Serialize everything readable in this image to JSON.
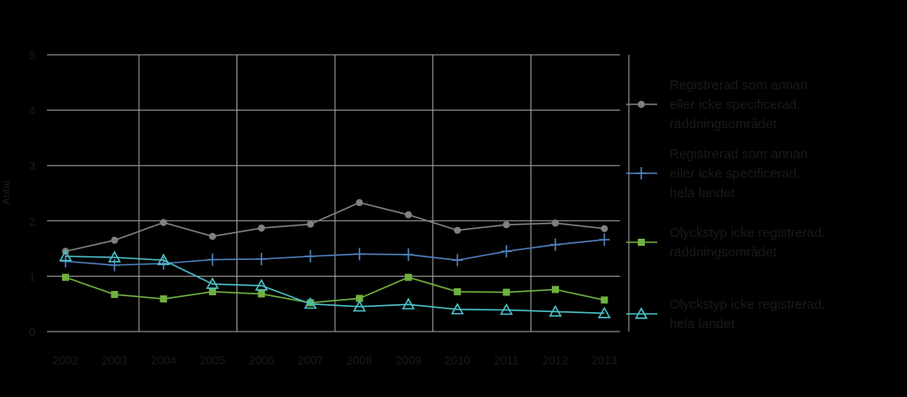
{
  "chart_data": {
    "type": "line",
    "title": "",
    "xlabel": "",
    "ylabel": "Antal",
    "ylim": [
      0,
      5
    ],
    "y_ticks": [
      "0",
      "1",
      "2",
      "3",
      "4",
      "5"
    ],
    "grid": true,
    "legend_position": "right",
    "categories": [
      "2002",
      "2003",
      "2004",
      "2005",
      "2006",
      "2007",
      "2008",
      "2009",
      "2010",
      "2011",
      "2012",
      "2013"
    ],
    "series": [
      {
        "name_lines": [
          "Registrerad som annan",
          "eller icke specificerad,",
          "räddningsområdet"
        ],
        "color": "#808080",
        "marker": "circle",
        "values": [
          1.45,
          1.65,
          1.97,
          1.72,
          1.87,
          1.94,
          2.33,
          2.11,
          1.83,
          1.93,
          1.96,
          1.86
        ]
      },
      {
        "name_lines": [
          "Registrerad som annan",
          "eller icke specificerad,",
          "hela landet"
        ],
        "color": "#4f81bd",
        "marker": "plus",
        "values": [
          1.27,
          1.2,
          1.23,
          1.3,
          1.31,
          1.36,
          1.4,
          1.39,
          1.29,
          1.45,
          1.57,
          1.66
        ]
      },
      {
        "name_lines": [
          "Olyckstyp icke registrerad,",
          "räddningsområdet"
        ],
        "color": "#70b040",
        "marker": "square",
        "values": [
          0.98,
          0.67,
          0.59,
          0.72,
          0.68,
          0.52,
          0.6,
          0.98,
          0.72,
          0.71,
          0.76,
          0.57
        ]
      },
      {
        "name_lines": [
          "Olyckstyp icke registrerad,",
          "hela landet"
        ],
        "color": "#4bc0c8",
        "marker": "triangle",
        "values": [
          1.36,
          1.34,
          1.29,
          0.86,
          0.83,
          0.5,
          0.45,
          0.49,
          0.4,
          0.39,
          0.36,
          0.33
        ]
      }
    ]
  }
}
